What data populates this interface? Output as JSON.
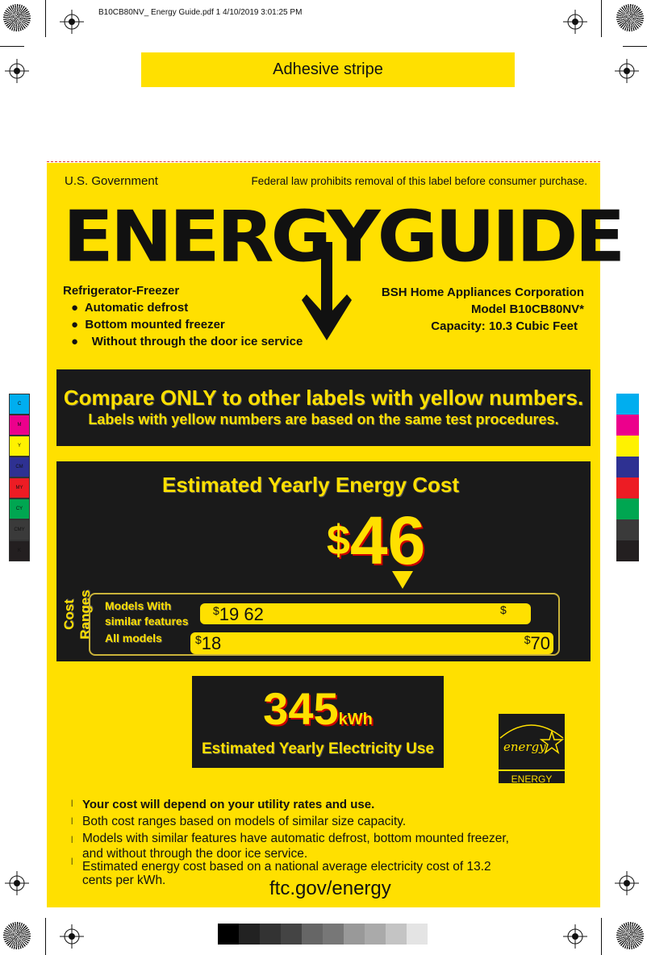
{
  "header": {
    "file_info": "B10CB80NV_ Energy Guide.pdf  1   4/10/2019   3:01:25 PM"
  },
  "adhesive": {
    "label": "Adhesive stripe"
  },
  "label": {
    "government": "U.S. Government",
    "federal_notice": "Federal law prohibits removal of this label before consumer purchase.",
    "logo_text": "ENERGYGUIDE",
    "product_type": "Refrigerator-Freezer",
    "features": [
      "Automatic defrost",
      "Bottom mounted freezer",
      "Without through the door ice service"
    ],
    "manufacturer": "BSH Home Appliances Corporation",
    "model": "Model B10CB80NV*",
    "capacity": "Capacity: 10.3 Cubic Feet",
    "compare_title": "Compare ONLY to other labels with yellow numbers.",
    "compare_sub": "Labels with yellow numbers are based on the same test procedures.",
    "cost_title": "Estimated Yearly Energy Cost",
    "cost_currency": "$",
    "cost_value": "46",
    "cost_ranges_label": "Cost Ranges",
    "similar_label_1": "Models With",
    "similar_label_2": "similar features",
    "similar_min": "19",
    "similar_max": "62",
    "all_label": "All models",
    "all_min": "18",
    "all_max": "70",
    "kwh_value": "345",
    "kwh_unit": "kWh",
    "kwh_title": "Estimated Yearly Electricity Use",
    "energy_star_text": "ENERGY STAR",
    "energy_star_script": "energy",
    "notes": [
      "Your cost will depend on your utility rates and use.",
      "Both cost ranges based on models of similar size capacity.",
      "Models with similar features have automatic defrost, bottom mounted freezer, and without through the door ice service.",
      "Estimated energy cost based on a national average electricity cost of 13.2 cents per kWh."
    ],
    "website": "ftc.gov/energy"
  },
  "color_bar": {
    "labels": [
      "C",
      "M",
      "Y",
      "CM",
      "MY",
      "CY",
      "CMY",
      "K"
    ],
    "colors": [
      "#00aeef",
      "#ec008c",
      "#fff200",
      "#2e3192",
      "#ed1c24",
      "#00a651",
      "#3a3a3a",
      "#231f20"
    ]
  },
  "colors": {
    "label_yellow": "#FFE000",
    "box_black": "#1a1a1a"
  }
}
